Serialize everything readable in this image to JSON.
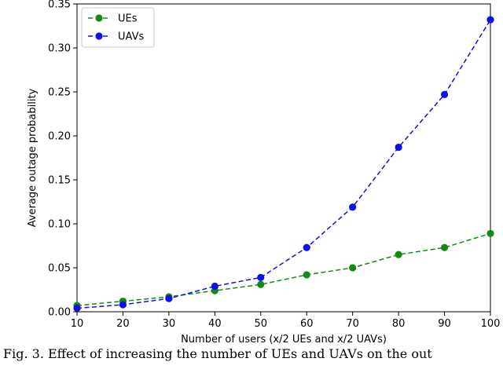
{
  "chart_data": {
    "type": "line",
    "title": "",
    "xlabel": "Number of users (x/2 UEs and x/2 UAVs)",
    "ylabel": "Average outage probability",
    "xlim": [
      10,
      100
    ],
    "ylim": [
      0,
      0.35
    ],
    "x_ticks": [
      10,
      20,
      30,
      40,
      50,
      60,
      70,
      80,
      90,
      100
    ],
    "y_ticks": [
      "0.00",
      "0.05",
      "0.10",
      "0.15",
      "0.20",
      "0.25",
      "0.30",
      "0.35"
    ],
    "x": [
      10,
      20,
      30,
      40,
      50,
      60,
      70,
      80,
      90,
      100
    ],
    "series": [
      {
        "name": "UEs",
        "color": "#138a13",
        "values": [
          0.007,
          0.012,
          0.017,
          0.024,
          0.031,
          0.042,
          0.05,
          0.065,
          0.073,
          0.089
        ]
      },
      {
        "name": "UAVs",
        "color": "#1010e6",
        "values": [
          0.004,
          0.008,
          0.015,
          0.029,
          0.039,
          0.073,
          0.119,
          0.187,
          0.247,
          0.332
        ]
      }
    ],
    "legend_position": "top-left",
    "grid": false,
    "line_style": "dashed",
    "marker": "circle"
  },
  "caption": "Fig. 3.    Effect of increasing the number of UEs and UAVs on the out"
}
